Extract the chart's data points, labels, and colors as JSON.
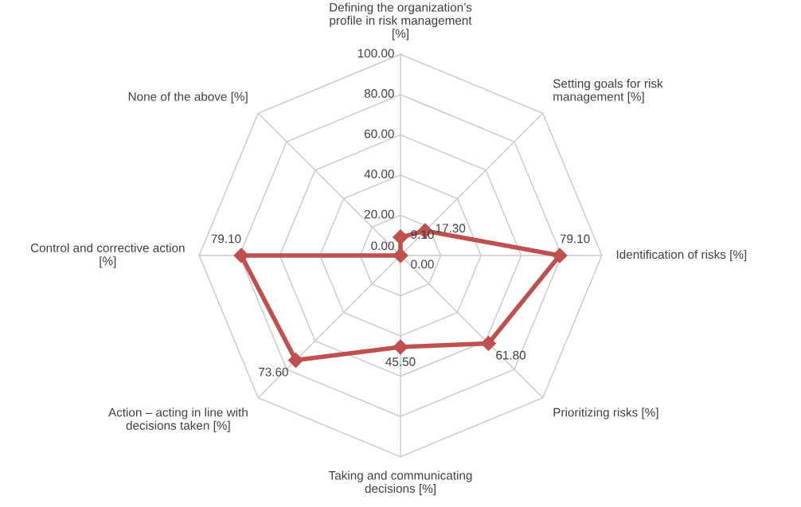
{
  "chart_data": {
    "type": "radar",
    "categories": [
      "Defining the organization’s\nprofile in risk management\n[%]",
      "Setting goals for risk\nmanagement [%]",
      "Identification of risks [%]",
      "Prioritizing risks [%]",
      "Taking and communicating\ndecisions [%]",
      "Action – acting in line with\ndecisions taken [%]",
      "Control and corrective action\n[%]",
      "None of the above [%]"
    ],
    "series": [
      {
        "color": "#c0504d",
        "values": [
          9.1,
          17.3,
          79.1,
          61.8,
          45.5,
          73.6,
          79.1,
          0.0
        ],
        "value_labels": [
          "9.10",
          "17.30",
          "79.10",
          "61.80",
          "45.50",
          "73.60",
          "79.10",
          "0.00"
        ]
      }
    ],
    "ylim": [
      0,
      100
    ],
    "yticks": [
      {
        "value": 0,
        "label": "0.00"
      },
      {
        "value": 20,
        "label": "20.00"
      },
      {
        "value": 40,
        "label": "40.00"
      },
      {
        "value": 60,
        "label": "60.00"
      },
      {
        "value": 80,
        "label": "80.00"
      },
      {
        "value": 100,
        "label": "100.00"
      }
    ],
    "grid": true,
    "marker": "diamond",
    "line_style": "solid",
    "legend": false
  }
}
